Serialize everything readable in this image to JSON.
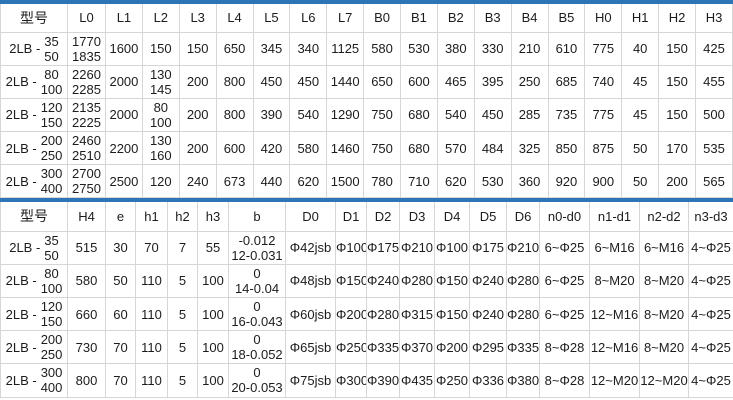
{
  "accent_color": "#2E75B6",
  "chart_data": [
    {
      "type": "table",
      "model_header": "型号",
      "columns": [
        "L0",
        "L1",
        "L2",
        "L3",
        "L4",
        "L5",
        "L6",
        "L7",
        "B0",
        "B1",
        "B2",
        "B3",
        "B4",
        "B5",
        "H0",
        "H1",
        "H2",
        "H3"
      ],
      "rows": [
        {
          "model_prefix": "2LB -",
          "model_range": "35\n50",
          "values": {
            "L0": "1770\n1835",
            "L1": "1600",
            "L2": "150",
            "L3": "150",
            "L4": "650",
            "L5": "345",
            "L6": "340",
            "L7": "1125",
            "B0": "580",
            "B1": "530",
            "B2": "380",
            "B3": "330",
            "B4": "210",
            "B5": "610",
            "H0": "775",
            "H1": "40",
            "H2": "150",
            "H3": "425"
          }
        },
        {
          "model_prefix": "2LB -",
          "model_range": "80\n100",
          "values": {
            "L0": "2260\n2285",
            "L1": "2000",
            "L2": "130\n145",
            "L3": "200",
            "L4": "800",
            "L5": "450",
            "L6": "450",
            "L7": "1440",
            "B0": "650",
            "B1": "600",
            "B2": "465",
            "B3": "395",
            "B4": "250",
            "B5": "685",
            "H0": "740",
            "H1": "45",
            "H2": "150",
            "H3": "455"
          }
        },
        {
          "model_prefix": "2LB -",
          "model_range": "120\n150",
          "values": {
            "L0": "2135\n2225",
            "L1": "2000",
            "L2": "80\n100",
            "L3": "200",
            "L4": "800",
            "L5": "390",
            "L6": "540",
            "L7": "1290",
            "B0": "750",
            "B1": "680",
            "B2": "540",
            "B3": "450",
            "B4": "285",
            "B5": "735",
            "H0": "775",
            "H1": "45",
            "H2": "150",
            "H3": "500"
          }
        },
        {
          "model_prefix": "2LB -",
          "model_range": "200\n250",
          "values": {
            "L0": "2460\n2510",
            "L1": "2200",
            "L2": "130\n160",
            "L3": "200",
            "L4": "600",
            "L5": "420",
            "L6": "580",
            "L7": "1460",
            "B0": "750",
            "B1": "680",
            "B2": "570",
            "B3": "484",
            "B4": "325",
            "B5": "850",
            "H0": "875",
            "H1": "50",
            "H2": "170",
            "H3": "535"
          }
        },
        {
          "model_prefix": "2LB -",
          "model_range": "300\n400",
          "values": {
            "L0": "2700\n2750",
            "L1": "2500",
            "L2": "120",
            "L3": "240",
            "L4": "673",
            "L5": "440",
            "L6": "620",
            "L7": "1500",
            "B0": "780",
            "B1": "710",
            "B2": "620",
            "B3": "530",
            "B4": "360",
            "B5": "920",
            "H0": "900",
            "H1": "50",
            "H2": "200",
            "H3": "565"
          }
        }
      ]
    },
    {
      "type": "table",
      "model_header": "型号",
      "columns": [
        "H4",
        "e",
        "h1",
        "h2",
        "h3",
        "b",
        "D0",
        "D1",
        "D2",
        "D3",
        "D4",
        "D5",
        "D6",
        "n0-d0",
        "n1-d1",
        "n2-d2",
        "n3-d3"
      ],
      "rows": [
        {
          "model_prefix": "2LB -",
          "model_range": "35\n50",
          "values": {
            "H4": "515",
            "e": "30",
            "h1": "70",
            "h2": "7",
            "h3": "55",
            "b": "-0.012\n12-0.031",
            "D0": "Φ42jsb",
            "D1": "Φ100",
            "D2": "Φ175",
            "D3": "Φ210",
            "D4": "Φ100",
            "D5": "Φ175",
            "D6": "Φ210",
            "n0-d0": "6~Φ25",
            "n1-d1": "6~M16",
            "n2-d2": "6~M16",
            "n3-d3": "4~Φ25"
          }
        },
        {
          "model_prefix": "2LB -",
          "model_range": "80\n100",
          "values": {
            "H4": "580",
            "e": "50",
            "h1": "110",
            "h2": "5",
            "h3": "100",
            "b": "0\n14-0.04",
            "D0": "Φ48jsb",
            "D1": "Φ150",
            "D2": "Φ240",
            "D3": "Φ280",
            "D4": "Φ150",
            "D5": "Φ240",
            "D6": "Φ280",
            "n0-d0": "6~Φ25",
            "n1-d1": "8~M20",
            "n2-d2": "8~M20",
            "n3-d3": "4~Φ25"
          }
        },
        {
          "model_prefix": "2LB -",
          "model_range": "120\n150",
          "values": {
            "H4": "660",
            "e": "60",
            "h1": "110",
            "h2": "5",
            "h3": "100",
            "b": "0\n16-0.043",
            "D0": "Φ60jsb",
            "D1": "Φ200",
            "D2": "Φ280",
            "D3": "Φ315",
            "D4": "Φ150",
            "D5": "Φ240",
            "D6": "Φ280",
            "n0-d0": "6~Φ25",
            "n1-d1": "12~M16",
            "n2-d2": "8~M20",
            "n3-d3": "4~Φ25"
          }
        },
        {
          "model_prefix": "2LB -",
          "model_range": "200\n250",
          "values": {
            "H4": "730",
            "e": "70",
            "h1": "110",
            "h2": "5",
            "h3": "100",
            "b": "0\n18-0.052",
            "D0": "Φ65jsb",
            "D1": "Φ250",
            "D2": "Φ335",
            "D3": "Φ370",
            "D4": "Φ200",
            "D5": "Φ295",
            "D6": "Φ335",
            "n0-d0": "8~Φ28",
            "n1-d1": "12~M16",
            "n2-d2": "8~M20",
            "n3-d3": "4~Φ25"
          }
        },
        {
          "model_prefix": "2LB -",
          "model_range": "300\n400",
          "values": {
            "H4": "800",
            "e": "70",
            "h1": "110",
            "h2": "5",
            "h3": "100",
            "b": "0\n20-0.053",
            "D0": "Φ75jsb",
            "D1": "Φ300",
            "D2": "Φ390",
            "D3": "Φ435",
            "D4": "Φ250",
            "D5": "Φ336",
            "D6": "Φ380",
            "n0-d0": "8~Φ28",
            "n1-d1": "12~M20",
            "n2-d2": "12~M20",
            "n3-d3": "4~Φ25"
          }
        }
      ]
    }
  ]
}
